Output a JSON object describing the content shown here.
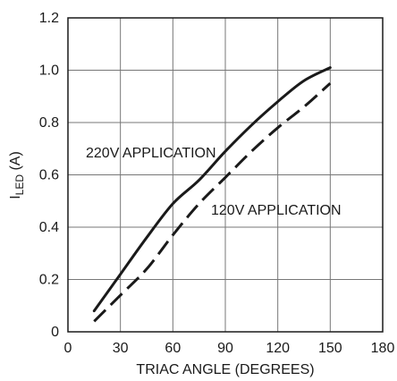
{
  "chart_data": {
    "type": "line",
    "title": "",
    "xlabel": "TRIAC ANGLE (DEGREES)",
    "ylabel": {
      "main": "I",
      "sub": "LED",
      "unit": " (A)"
    },
    "xlim": [
      0,
      180
    ],
    "ylim": [
      0,
      1.2
    ],
    "x_ticks": [
      0,
      30,
      60,
      90,
      120,
      150,
      180
    ],
    "y_ticks": [
      0,
      0.2,
      0.4,
      0.6,
      0.8,
      1.0,
      1.2
    ],
    "x_tick_labels": [
      "0",
      "30",
      "60",
      "90",
      "120",
      "150",
      "180"
    ],
    "y_tick_labels": [
      "0",
      "0.2",
      "0.4",
      "0.6",
      "0.8",
      "1.0",
      "1.2"
    ],
    "grid": true,
    "legend": "none",
    "annotations": [
      {
        "text": "220V APPLICATION",
        "series": 0
      },
      {
        "text": "120V APPLICATION",
        "series": 1
      }
    ],
    "series": [
      {
        "name": "220V APPLICATION",
        "style": "solid",
        "x": [
          15,
          30,
          45,
          60,
          75,
          90,
          105,
          120,
          135,
          150
        ],
        "y": [
          0.08,
          0.22,
          0.36,
          0.49,
          0.58,
          0.69,
          0.79,
          0.88,
          0.96,
          1.01
        ]
      },
      {
        "name": "120V APPLICATION",
        "style": "dashed",
        "x": [
          15,
          30,
          45,
          60,
          75,
          90,
          105,
          120,
          135,
          150
        ],
        "y": [
          0.04,
          0.14,
          0.24,
          0.37,
          0.49,
          0.59,
          0.69,
          0.78,
          0.86,
          0.95
        ]
      }
    ]
  }
}
